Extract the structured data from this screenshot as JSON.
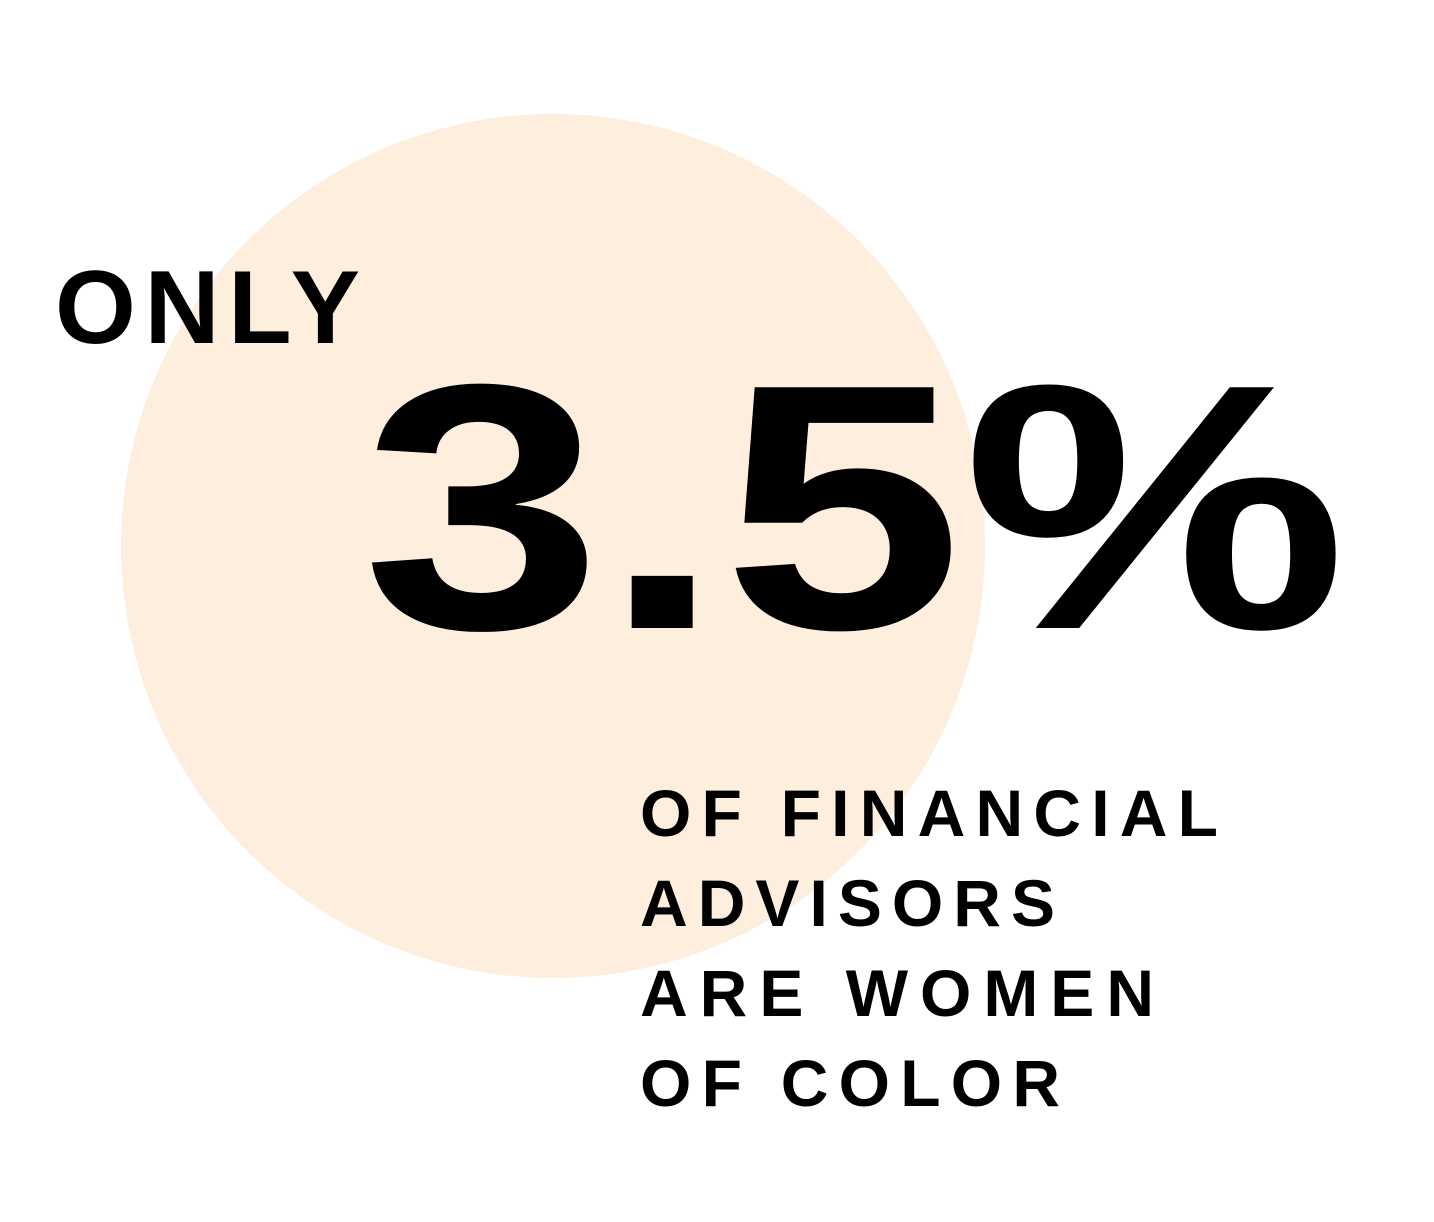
{
  "lead": "ONLY",
  "headline": "3.5%",
  "caption_lines": [
    "OF FINANCIAL",
    "ADVISORS",
    "ARE WOMEN",
    "OF COLOR"
  ]
}
